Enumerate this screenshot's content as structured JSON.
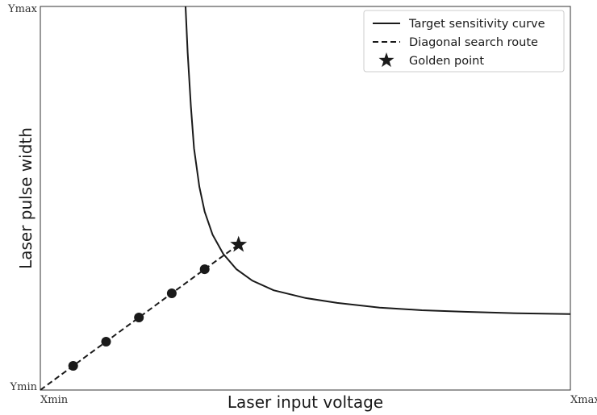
{
  "chart_data": {
    "type": "line",
    "title": "",
    "xlabel": "Laser input voltage",
    "ylabel": "Laser pulse width",
    "xlim": [
      0,
      1
    ],
    "ylim": [
      0,
      1
    ],
    "x_tick_labels": [
      "Xmin",
      "Xmax"
    ],
    "y_tick_labels": [
      "Ymin",
      "Ymax"
    ],
    "grid": false,
    "legend_position": "top-right",
    "series": [
      {
        "name": "Target sensitivity curve",
        "style": "solid",
        "x": [
          0.274,
          0.278,
          0.284,
          0.29,
          0.3,
          0.31,
          0.325,
          0.345,
          0.37,
          0.4,
          0.44,
          0.5,
          0.56,
          0.64,
          0.72,
          0.8,
          0.9,
          1.0
        ],
        "y": [
          1.0,
          0.88,
          0.74,
          0.63,
          0.53,
          0.465,
          0.405,
          0.355,
          0.315,
          0.285,
          0.26,
          0.24,
          0.227,
          0.215,
          0.208,
          0.204,
          0.2,
          0.198
        ]
      },
      {
        "name": "Diagonal search route",
        "style": "dashed",
        "markers": "circle",
        "x": [
          0.0,
          0.062,
          0.124,
          0.186,
          0.248,
          0.31,
          0.374
        ],
        "y": [
          0.0,
          0.063,
          0.126,
          0.189,
          0.252,
          0.315,
          0.379
        ]
      }
    ],
    "golden_point": {
      "name": "Golden point",
      "x": 0.374,
      "y": 0.379
    }
  },
  "colors": {
    "ink": "#1a1a1a",
    "frame": "#333333"
  }
}
